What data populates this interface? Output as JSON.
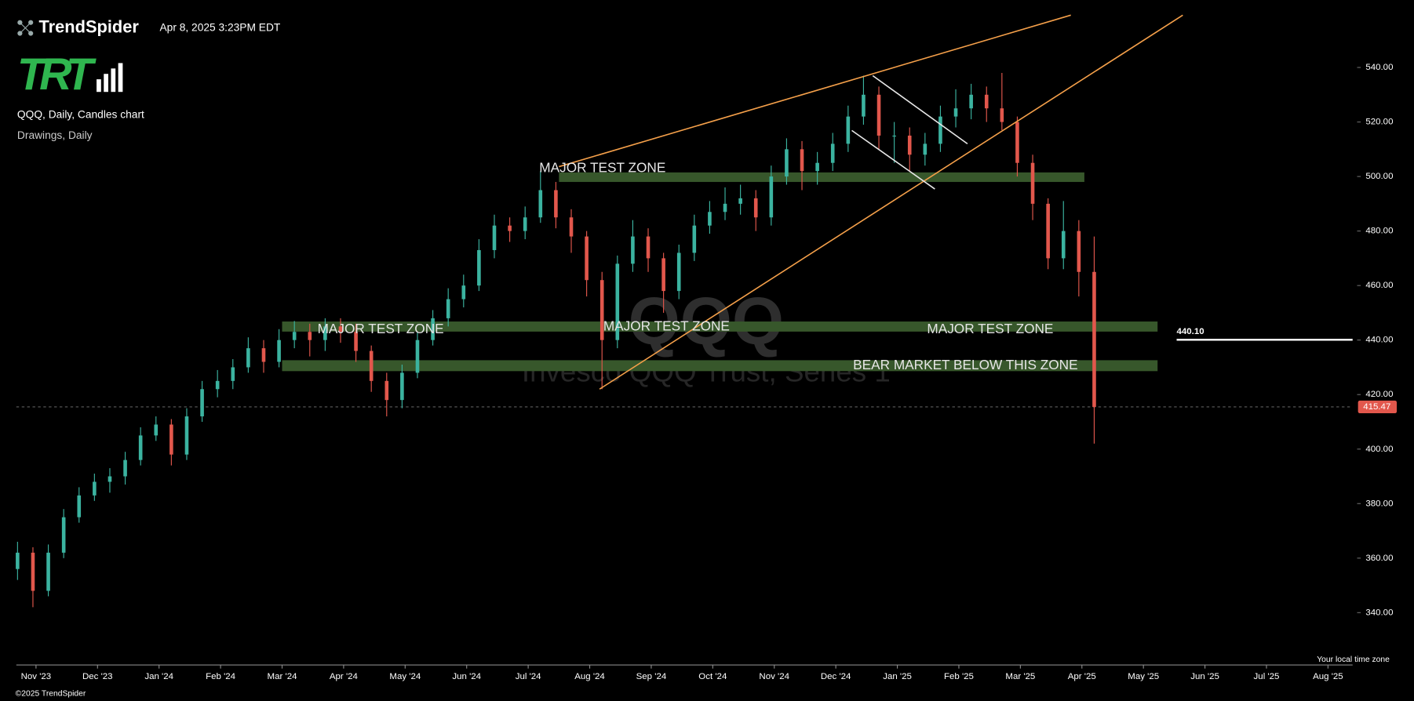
{
  "header": {
    "brand": "TrendSpider",
    "timestamp": "Apr 8, 2025 3:23PM EDT",
    "logo": "TRT",
    "chart_label": "QQQ, Daily, Candles chart",
    "drawings_label": "Drawings, Daily"
  },
  "chart_data": {
    "type": "candlestick",
    "watermark_symbol": "QQQ",
    "watermark_name": "Invesco QQQ Trust, Series 1",
    "up_color": "#3bb3a0",
    "down_color": "#e2574c",
    "xlim": [
      -0.32,
      21.4
    ],
    "xticks": [
      {
        "value": 0,
        "label": "Nov '23"
      },
      {
        "value": 1,
        "label": "Dec '23"
      },
      {
        "value": 2,
        "label": "Jan '24"
      },
      {
        "value": 3,
        "label": "Feb '24"
      },
      {
        "value": 4,
        "label": "Mar '24"
      },
      {
        "value": 5,
        "label": "Apr '24"
      },
      {
        "value": 6,
        "label": "May '24"
      },
      {
        "value": 7,
        "label": "Jun '24"
      },
      {
        "value": 8,
        "label": "Jul '24"
      },
      {
        "value": 9,
        "label": "Aug '24"
      },
      {
        "value": 10,
        "label": "Sep '24"
      },
      {
        "value": 11,
        "label": "Oct '24"
      },
      {
        "value": 12,
        "label": "Nov '24"
      },
      {
        "value": 13,
        "label": "Dec '24"
      },
      {
        "value": 14,
        "label": "Jan '25"
      },
      {
        "value": 15,
        "label": "Feb '25"
      },
      {
        "value": 16,
        "label": "Mar '25"
      },
      {
        "value": 17,
        "label": "Apr '25"
      },
      {
        "value": 18,
        "label": "May '25"
      },
      {
        "value": 19,
        "label": "Jun '25"
      },
      {
        "value": 20,
        "label": "Jul '25"
      },
      {
        "value": 21,
        "label": "Aug '25"
      }
    ],
    "ylim": [
      321.8,
      558.8
    ],
    "yticks": [
      {
        "value": 340,
        "label": "340.00"
      },
      {
        "value": 360,
        "label": "360.00"
      },
      {
        "value": 380,
        "label": "380.00"
      },
      {
        "value": 400,
        "label": "400.00"
      },
      {
        "value": 420,
        "label": "420.00"
      },
      {
        "value": 440,
        "label": "440.00"
      },
      {
        "value": 460,
        "label": "460.00"
      },
      {
        "value": 480,
        "label": "480.00"
      },
      {
        "value": 500,
        "label": "500.00"
      },
      {
        "value": 520,
        "label": "520.00"
      },
      {
        "value": 540,
        "label": "540.00"
      }
    ],
    "x": [
      -0.3,
      -0.05,
      0.2,
      0.45,
      0.7,
      0.95,
      1.2,
      1.45,
      1.7,
      1.95,
      2.2,
      2.45,
      2.7,
      2.95,
      3.2,
      3.45,
      3.7,
      3.95,
      4.2,
      4.45,
      4.7,
      4.95,
      5.2,
      5.45,
      5.7,
      5.95,
      6.2,
      6.45,
      6.7,
      6.95,
      7.2,
      7.45,
      7.7,
      7.95,
      8.2,
      8.45,
      8.7,
      8.95,
      9.2,
      9.45,
      9.7,
      9.95,
      10.2,
      10.45,
      10.7,
      10.95,
      11.2,
      11.45,
      11.7,
      11.95,
      12.2,
      12.45,
      12.7,
      12.95,
      13.2,
      13.45,
      13.7,
      13.95,
      14.2,
      14.45,
      14.7,
      14.95,
      15.2,
      15.45,
      15.7,
      15.95,
      16.2,
      16.45,
      16.7,
      16.95,
      17.2
    ],
    "open": [
      356,
      362,
      348,
      362,
      375,
      383,
      388,
      390,
      396,
      405,
      409,
      398,
      412,
      422,
      425,
      430,
      437,
      432,
      440,
      443,
      440,
      445,
      443,
      436,
      425,
      418,
      428,
      440,
      448,
      455,
      460,
      473,
      482,
      480,
      485,
      495,
      485,
      478,
      462,
      440,
      468,
      478,
      470,
      458,
      472,
      482,
      487,
      490,
      492,
      485,
      500,
      510,
      502,
      505,
      512,
      522,
      530,
      515,
      515,
      508,
      512,
      522,
      525,
      530,
      525,
      520,
      505,
      490,
      470,
      480,
      465
    ],
    "high": [
      366,
      364,
      365,
      378,
      386,
      391,
      393,
      399,
      408,
      412,
      411,
      415,
      425,
      429,
      433,
      441,
      440,
      444,
      447,
      446,
      448,
      448,
      446,
      438,
      428,
      431,
      443,
      451,
      459,
      464,
      477,
      486,
      485,
      489,
      502,
      498,
      488,
      480,
      465,
      471,
      484,
      481,
      472,
      475,
      486,
      491,
      496,
      497,
      495,
      504,
      514,
      513,
      509,
      516,
      526,
      537,
      533,
      520,
      518,
      516,
      526,
      532,
      534,
      533,
      538,
      522,
      508,
      492,
      491,
      484,
      478
    ],
    "low": [
      352,
      342,
      346,
      360,
      373,
      381,
      384,
      387,
      394,
      403,
      394,
      396,
      410,
      419,
      422,
      428,
      428,
      430,
      437,
      434,
      436,
      439,
      432,
      421,
      412,
      415,
      426,
      438,
      445,
      452,
      458,
      470,
      476,
      477,
      483,
      481,
      472,
      456,
      422,
      437,
      465,
      465,
      450,
      455,
      469,
      479,
      484,
      486,
      480,
      482,
      497,
      495,
      497,
      502,
      509,
      519,
      510,
      505,
      502,
      504,
      509,
      518,
      521,
      520,
      517,
      500,
      484,
      466,
      466,
      456,
      402
    ],
    "close": [
      362,
      348,
      362,
      375,
      383,
      388,
      390,
      396,
      405,
      409,
      398,
      412,
      422,
      425,
      430,
      437,
      432,
      440,
      443,
      440,
      445,
      443,
      436,
      425,
      418,
      428,
      440,
      448,
      455,
      460,
      473,
      482,
      480,
      485,
      495,
      485,
      478,
      462,
      440,
      468,
      478,
      470,
      458,
      472,
      482,
      487,
      490,
      492,
      485,
      500,
      510,
      502,
      505,
      512,
      522,
      530,
      515,
      515,
      508,
      512,
      522,
      525,
      530,
      525,
      520,
      505,
      490,
      470,
      480,
      465,
      415.47
    ],
    "zones": [
      {
        "color": "#37572b",
        "x": [
          8.5,
          17.04
        ],
        "y": [
          498,
          501.5
        ]
      },
      {
        "color": "#37572b",
        "x": [
          4.0,
          18.23
        ],
        "y": [
          443.1,
          446.8
        ]
      },
      {
        "color": "#37572b",
        "x": [
          4.0,
          18.23
        ],
        "y": [
          428.6,
          432.6
        ]
      }
    ],
    "trendlines": [
      {
        "color": "#f5a04a",
        "x": [
          8.5,
          16.82
        ],
        "y": [
          503.6,
          559.2
        ]
      },
      {
        "color": "#f5a04a",
        "x": [
          9.16,
          18.64
        ],
        "y": [
          422,
          559.2
        ]
      },
      {
        "color": "#e8e8e8",
        "x": [
          13.6,
          15.14
        ],
        "y": [
          537,
          512
        ]
      },
      {
        "color": "#e8e8e8",
        "x": [
          13.26,
          14.61
        ],
        "y": [
          516.9,
          495.4
        ]
      }
    ],
    "annotations": [
      "MAJOR TEST ZONE",
      "MAJOR TEST ZONE",
      "MAJOR TEST ZONE",
      "MAJOR TEST ZONE",
      "BEAR MARKET BELOW THIS ZONE"
    ],
    "level_line": {
      "value": 440.1,
      "label": "440.10",
      "x_start": 18.54
    },
    "last_price": 415.47,
    "last_price_color": "#e2574c",
    "timezone_note": "Your local time zone"
  },
  "footer": {
    "copyright": "©2025 TrendSpider"
  }
}
